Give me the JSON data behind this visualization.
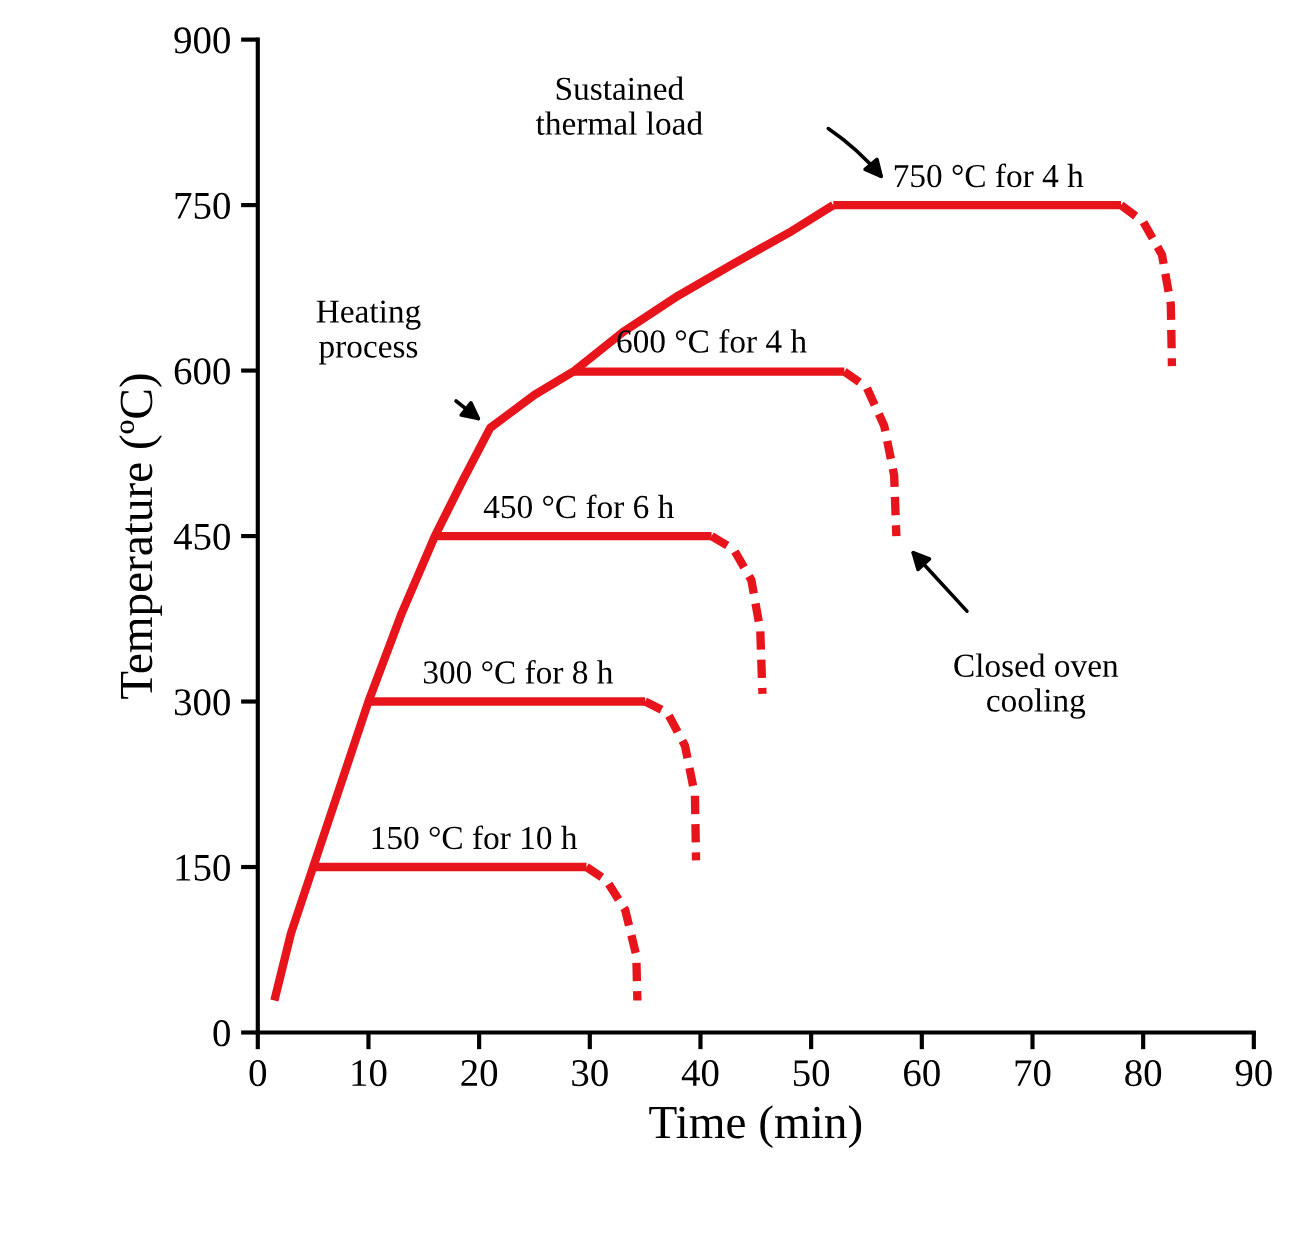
{
  "chart_data": {
    "type": "line",
    "xlabel": "Time (min)",
    "ylabel": "Temperature (ºC)",
    "xlim": [
      0,
      90
    ],
    "ylim": [
      0,
      900
    ],
    "xticks": [
      0,
      10,
      20,
      30,
      40,
      50,
      60,
      70,
      80,
      90
    ],
    "yticks": [
      0,
      150,
      300,
      450,
      600,
      750,
      900
    ],
    "grid": false,
    "legend": false,
    "marker": "none",
    "series": [
      {
        "color": "#e8141b",
        "line_style": "solid",
        "x": [
          1.5,
          3,
          5,
          7.5,
          10,
          13,
          16,
          18.5,
          21,
          25,
          28.5,
          33,
          38,
          43,
          48,
          52
        ],
        "values": [
          29,
          90,
          150,
          225,
          300,
          380,
          450,
          500,
          548,
          578,
          599,
          635,
          668,
          697,
          725,
          750
        ]
      },
      {
        "color": "#e8141b",
        "line_style": "solid",
        "x": [
          5,
          29.7
        ],
        "values": [
          150,
          150
        ]
      },
      {
        "color": "#e8141b",
        "line_style": "solid",
        "x": [
          10,
          35
        ],
        "values": [
          300,
          300
        ]
      },
      {
        "color": "#e8141b",
        "line_style": "solid",
        "x": [
          16,
          41
        ],
        "values": [
          450,
          450
        ]
      },
      {
        "color": "#e8141b",
        "line_style": "solid",
        "x": [
          28.5,
          53
        ],
        "values": [
          599,
          599
        ]
      },
      {
        "color": "#e8141b",
        "line_style": "solid",
        "x": [
          52,
          78
        ],
        "values": [
          750,
          750
        ]
      },
      {
        "color": "#e8141b",
        "line_style": "dashed",
        "x": [
          29.7,
          31.5,
          33.2,
          34.2,
          34.3
        ],
        "values": [
          150,
          138,
          111,
          70,
          29
        ]
      },
      {
        "color": "#e8141b",
        "line_style": "dashed",
        "x": [
          35,
          37,
          38.6,
          39.5,
          39.6
        ],
        "values": [
          300,
          290,
          260,
          215,
          156
        ]
      },
      {
        "color": "#e8141b",
        "line_style": "dashed",
        "x": [
          41,
          43,
          44.6,
          45.4,
          45.6
        ],
        "values": [
          450,
          438,
          410,
          365,
          307
        ]
      },
      {
        "color": "#e8141b",
        "line_style": "dashed",
        "x": [
          53,
          55,
          56.6,
          57.5,
          57.7
        ],
        "values": [
          599,
          585,
          550,
          505,
          450
        ]
      },
      {
        "color": "#e8141b",
        "line_style": "dashed",
        "x": [
          78,
          80,
          81.7,
          82.5,
          82.6
        ],
        "values": [
          750,
          735,
          705,
          660,
          604
        ]
      }
    ],
    "annotations": [
      {
        "text": "150 °C for 10 h",
        "x": 19.5,
        "y": 160
      },
      {
        "text": "300 °C for 8 h",
        "x": 23.5,
        "y": 310
      },
      {
        "text": "450 °C for 6 h",
        "x": 29,
        "y": 460
      },
      {
        "text": "600 °C for 4 h",
        "x": 41,
        "y": 610
      },
      {
        "text": "750 °C for 4 h",
        "x": 66,
        "y": 760
      },
      "Sustained\nthermal load",
      {
        "text": "Heating\nprocess",
        "x": 21,
        "y": 548
      },
      {
        "text": "Closed oven\ncooling",
        "x": 58.3,
        "y": 445
      }
    ]
  }
}
